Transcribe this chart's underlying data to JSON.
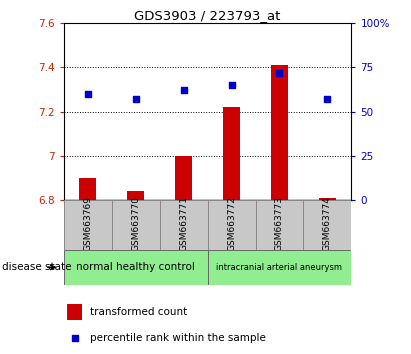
{
  "title": "GDS3903 / 223793_at",
  "samples": [
    "GSM663769",
    "GSM663770",
    "GSM663771",
    "GSM663772",
    "GSM663773",
    "GSM663774"
  ],
  "transformed_count": [
    6.9,
    6.84,
    7.0,
    7.22,
    7.41,
    6.81
  ],
  "percentile_rank": [
    60,
    57,
    62,
    65,
    72,
    57
  ],
  "ylim_left": [
    6.8,
    7.6
  ],
  "ylim_right": [
    0,
    100
  ],
  "yticks_left": [
    6.8,
    7.0,
    7.2,
    7.4,
    7.6
  ],
  "ytick_labels_left": [
    "6.8",
    "7",
    "7.2",
    "7.4",
    "7.6"
  ],
  "yticks_right": [
    0,
    25,
    50,
    75,
    100
  ],
  "ytick_labels_right": [
    "0",
    "25",
    "50",
    "75",
    "100%"
  ],
  "group1_label": "normal healthy control",
  "group2_label": "intracranial arterial aneurysm",
  "group_color": "#90EE90",
  "disease_state_label": "disease state",
  "bar_color": "#CC0000",
  "dot_color": "#0000CC",
  "bar_width": 0.35,
  "sample_box_color": "#C8C8C8",
  "legend_bar_label": "transformed count",
  "legend_dot_label": "percentile rank within the sample"
}
